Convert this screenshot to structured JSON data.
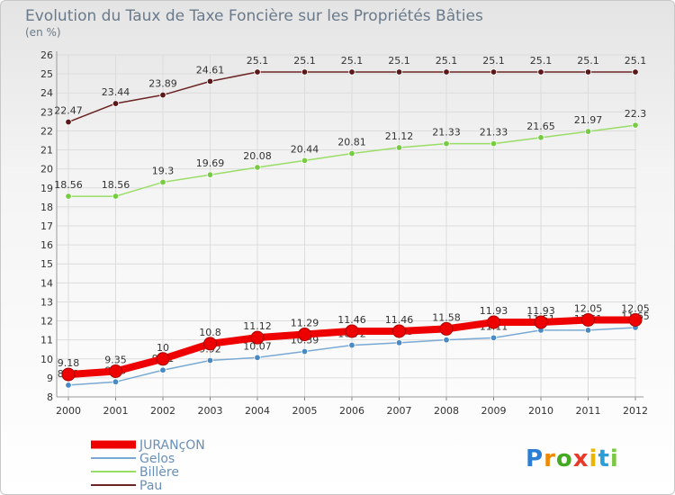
{
  "chart_data": {
    "type": "line",
    "title": "Evolution du Taux de Taxe Foncière sur les Propriétés Bâties",
    "subtitle": "(en %)",
    "x": [
      "2000",
      "2001",
      "2002",
      "2003",
      "2004",
      "2005",
      "2006",
      "2007",
      "2008",
      "2009",
      "2010",
      "2011",
      "2012"
    ],
    "ylim": [
      8,
      26
    ],
    "yticks": [
      "8",
      "9",
      "10",
      "11",
      "12",
      "13",
      "14",
      "15",
      "16",
      "17",
      "18",
      "19",
      "20",
      "21",
      "22",
      "23",
      "24",
      "25",
      "26"
    ],
    "grid": true,
    "legend_position": "bottom-left",
    "series": [
      {
        "name": "Pau",
        "color": "#6b2424",
        "marker": "#5a1818",
        "values": [
          22.47,
          23.44,
          23.89,
          24.61,
          25.1,
          25.1,
          25.1,
          25.1,
          25.1,
          25.1,
          25.1,
          25.1,
          25.1
        ],
        "labels": [
          "22.47",
          "23.44",
          "23.89",
          "24.61",
          "25.1",
          "25.1",
          "25.1",
          "25.1",
          "25.1",
          "25.1",
          "25.1",
          "25.1",
          "25.1"
        ]
      },
      {
        "name": "Billère",
        "color": "#99dd66",
        "marker": "#77cc44",
        "values": [
          18.56,
          18.56,
          19.3,
          19.69,
          20.08,
          20.44,
          20.81,
          21.12,
          21.33,
          21.33,
          21.65,
          21.97,
          22.3
        ],
        "labels": [
          "18.56",
          "18.56",
          "19.3",
          "19.69",
          "20.08",
          "20.44",
          "20.81",
          "21.12",
          "21.33",
          "21.33",
          "21.65",
          "21.97",
          "22.3"
        ]
      },
      {
        "name": "Gelos",
        "color": "#7aaad4",
        "marker": "#4a8ac4",
        "values": [
          8.62,
          8.79,
          9.41,
          9.92,
          10.07,
          10.39,
          10.72,
          10.85,
          11,
          11.11,
          11.51,
          11.51,
          11.65
        ],
        "labels": [
          "8.62",
          "8.79",
          "9.41",
          "9.92",
          "10.07",
          "10.39",
          "10.72",
          "10.85",
          "11",
          "11.11",
          "11.51",
          "11.51",
          "11.65"
        ]
      },
      {
        "name": "JURANçON",
        "color": "#ee0000",
        "marker": "#ee0000",
        "values": [
          9.18,
          9.35,
          10,
          10.8,
          11.12,
          11.29,
          11.46,
          11.46,
          11.58,
          11.93,
          11.93,
          12.05,
          12.05
        ],
        "labels": [
          "9.18",
          "9.35",
          "10",
          "10.8",
          "11.12",
          "11.29",
          "11.46",
          "11.46",
          "11.58",
          "11.93",
          "11.93",
          "12.05",
          "12.05"
        ]
      }
    ],
    "legend": [
      "JURANçON",
      "Gelos",
      "Billère",
      "Pau"
    ]
  },
  "watermark": "Proxiti"
}
